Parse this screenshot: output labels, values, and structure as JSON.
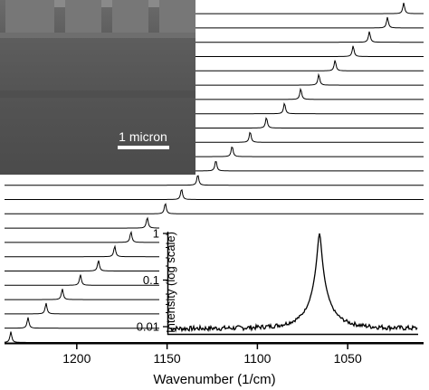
{
  "chart_data": [
    {
      "type": "line",
      "description_mode": "stacked spectra (waterfall)",
      "xlabel": "Wavenumber (1/cm)",
      "xlim": [
        1240,
        1008
      ],
      "x_reversed": true,
      "x_ticks": [
        {
          "value": 1200,
          "label": "1200"
        },
        {
          "value": 1150,
          "label": "1150"
        },
        {
          "value": 1100,
          "label": "1100"
        },
        {
          "value": 1050,
          "label": "1050"
        }
      ],
      "peak_centers": [
        1236.5,
        1227,
        1217,
        1208,
        1198,
        1188,
        1179,
        1170,
        1161,
        1151,
        1142,
        1133,
        1123,
        1114,
        1104,
        1095,
        1085,
        1076,
        1066,
        1057,
        1047,
        1038,
        1028,
        1019
      ],
      "grid": false
    },
    {
      "type": "line",
      "role": "inset",
      "ylabel": "Intensity (log scale)",
      "y_scale": "log",
      "ylim": [
        0.007,
        1
      ],
      "y_ticks": [
        {
          "value": 1,
          "label": "1"
        },
        {
          "value": 0.1,
          "label": "0.1"
        },
        {
          "value": 0.01,
          "label": "0.01"
        }
      ],
      "peak": 1,
      "baseline": 0.009
    }
  ],
  "micrograph": {
    "scale_label": "1 micron"
  },
  "colors": {
    "line": "#000000",
    "micrograph_bg": "#5a5a5a",
    "scale_bar": "#ffffff"
  }
}
